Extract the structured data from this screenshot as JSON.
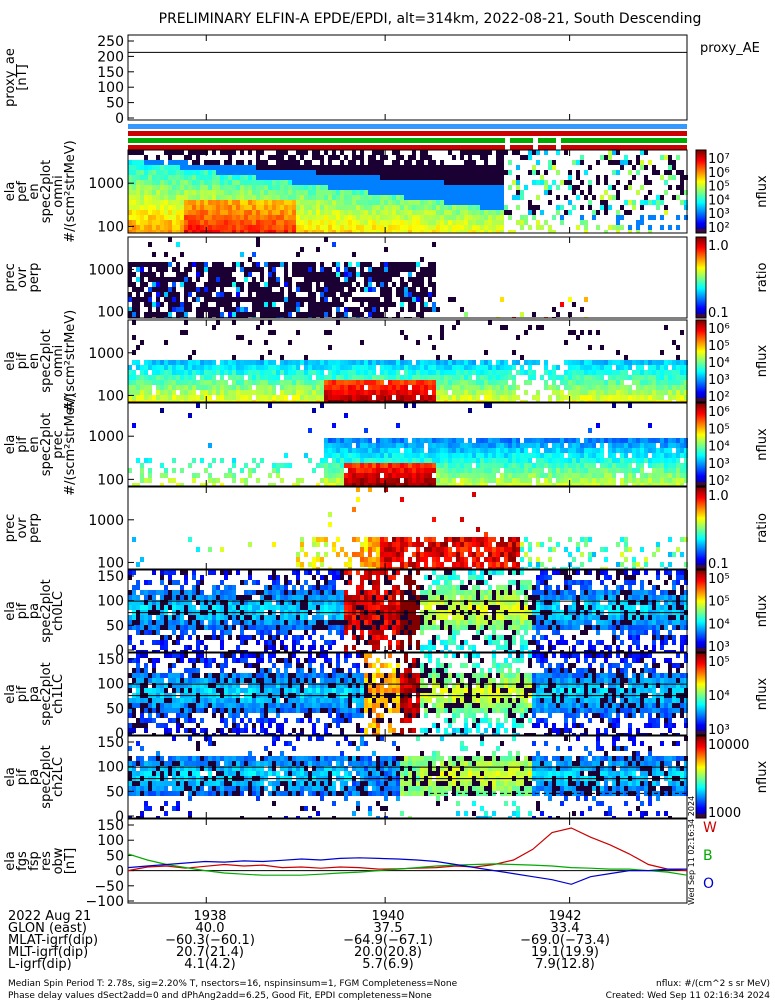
{
  "title": "PRELIMINARY ELFIN-A EPDE/EPDI, alt=314km, 2022-08-21, South Descending",
  "panels": [
    {
      "key": "ae",
      "ylabel": [
        "proxy_ae",
        "[nT]"
      ],
      "right_label": "proxy_AE",
      "yticks": [
        "250",
        "200",
        "150",
        "100",
        "50",
        "0"
      ]
    },
    {
      "key": "epde_omni",
      "ylabel": [
        "ela",
        "pef",
        "en",
        "spec2plot",
        "omni",
        "#/(scm²strMeV)"
      ],
      "yticks": [
        "1000",
        "100"
      ],
      "cbar_label": "nflux",
      "cbar_ticks": [
        "10⁷",
        "10⁶",
        "10⁵",
        "10⁴",
        "10³",
        "10²"
      ]
    },
    {
      "key": "epde_ratio",
      "ylabel": [
        "prec",
        "ovr",
        "perp"
      ],
      "yticks": [
        "1000",
        "100"
      ],
      "cbar_label": "ratio",
      "cbar_ticks": [
        "1.0",
        "0.1"
      ]
    },
    {
      "key": "epdi_omni",
      "ylabel": [
        "ela",
        "pif",
        "en",
        "spec2plot",
        "omni",
        "#/(scm²strMeV)"
      ],
      "yticks": [
        "1000",
        "100"
      ],
      "cbar_label": "nflux",
      "cbar_ticks": [
        "10⁶",
        "10⁵",
        "10⁴",
        "10³",
        "10²"
      ]
    },
    {
      "key": "epdi_prec",
      "ylabel": [
        "ela",
        "pif",
        "en",
        "spec2plot",
        "prec",
        "#/(scm²strMeV)"
      ],
      "yticks": [
        "1000",
        "100"
      ],
      "cbar_label": "nflux",
      "cbar_ticks": [
        "10⁶",
        "10⁵",
        "10⁴",
        "10³",
        "10²"
      ]
    },
    {
      "key": "epdi_ratio",
      "ylabel": [
        "prec",
        "ovr",
        "perp"
      ],
      "yticks": [
        "1000",
        "100"
      ],
      "cbar_label": "ratio",
      "cbar_ticks": [
        "1.0",
        "0.1"
      ]
    },
    {
      "key": "pa_ch0",
      "ylabel": [
        "ela",
        "pif",
        "pa",
        "spec2plot",
        "ch0LC"
      ],
      "yticks": [
        "150",
        "100",
        "50",
        "0"
      ],
      "cbar_label": "nflux",
      "cbar_ticks": [
        "10⁵",
        "10⁵",
        "10⁴",
        "10³"
      ]
    },
    {
      "key": "pa_ch1",
      "ylabel": [
        "ela",
        "pif",
        "pa",
        "spec2plot",
        "ch1LC"
      ],
      "yticks": [
        "150",
        "100",
        "50",
        "0"
      ],
      "cbar_label": "nflux",
      "cbar_ticks": [
        "10⁵",
        "10⁴",
        "10³"
      ]
    },
    {
      "key": "pa_ch2",
      "ylabel": [
        "ela",
        "pif",
        "pa",
        "spec2plot",
        "ch2LC"
      ],
      "yticks": [
        "150",
        "100",
        "50",
        "0"
      ],
      "cbar_label": "nflux",
      "cbar_ticks": [
        "10000",
        "1000"
      ]
    },
    {
      "key": "fgs",
      "ylabel": [
        "ela",
        "fgs",
        "fsp",
        "res",
        "obw",
        "[nT]"
      ],
      "yticks": [
        "150",
        "100",
        "50",
        "0",
        "−50",
        "−100"
      ]
    }
  ],
  "footer_rows": [
    {
      "label": "2022 Aug 21",
      "values": [
        "1938",
        "1940",
        "1942"
      ]
    },
    {
      "label": "GLON (east)",
      "values": [
        "40.0",
        "37.5",
        "33.4"
      ]
    },
    {
      "label": "MLAT-igrf(dip)",
      "values": [
        "−60.3(−60.1)",
        "−64.9(−67.1)",
        "−69.0(−73.4)"
      ]
    },
    {
      "label": "MLT-igrf(dip)",
      "values": [
        "20.7(21.4)",
        "20.0(20.8)",
        "19.1(19.9)"
      ]
    },
    {
      "label": "L-igrf(dip)",
      "values": [
        "4.1(4.2)",
        "5.7(6.9)",
        "7.9(12.8)"
      ]
    }
  ],
  "note_line1": "Median Spin Period T: 2.78s, sig=2.20% T, nsectors=16, nspinsinsum=1, FGM Completeness=None",
  "note_line2": "Phase delay values dSect2add=0 and dPhAng2add=6.25, Good Fit, EPDI completeness=None",
  "units_note": "nflux: #/(cm^2 s sr MeV)",
  "created": "Created: Wed Sep 11 02:16:34 2024",
  "side_stamp": "Wed Sep 11 02:16:34 2024",
  "fgs_legend": [
    {
      "label": "W",
      "color": "#cc0000"
    },
    {
      "label": "B",
      "color": "#00aa00"
    },
    {
      "label": "O",
      "color": "#0000cc"
    }
  ],
  "chart_data": {
    "type": "heatmap",
    "x_tick_labels": [
      "1938",
      "1940",
      "1942"
    ],
    "ae_level_nT": 210,
    "fgs_series": [
      {
        "name": "W",
        "color": "#cc0000",
        "values": [
          0,
          12,
          15,
          8,
          14,
          20,
          15,
          18,
          10,
          12,
          8,
          12,
          10,
          5,
          6,
          8,
          10,
          15,
          12,
          20,
          35,
          70,
          125,
          140,
          110,
          85,
          55,
          20,
          5,
          0
        ]
      },
      {
        "name": "B",
        "color": "#00aa00",
        "values": [
          55,
          35,
          20,
          10,
          0,
          -8,
          -12,
          -15,
          -15,
          -15,
          -12,
          -8,
          -5,
          0,
          5,
          10,
          15,
          18,
          20,
          22,
          20,
          18,
          15,
          10,
          8,
          5,
          5,
          0,
          -5,
          -15
        ]
      },
      {
        "name": "O",
        "color": "#0000cc",
        "values": [
          10,
          15,
          20,
          25,
          30,
          28,
          32,
          30,
          34,
          38,
          35,
          40,
          42,
          40,
          38,
          35,
          30,
          20,
          10,
          0,
          -10,
          -20,
          -30,
          -45,
          -20,
          -10,
          0,
          0,
          5,
          5
        ]
      }
    ],
    "stripe_colors": [
      "#3399ff",
      "#cc0000",
      "#00aa00",
      "#cc0000"
    ]
  }
}
